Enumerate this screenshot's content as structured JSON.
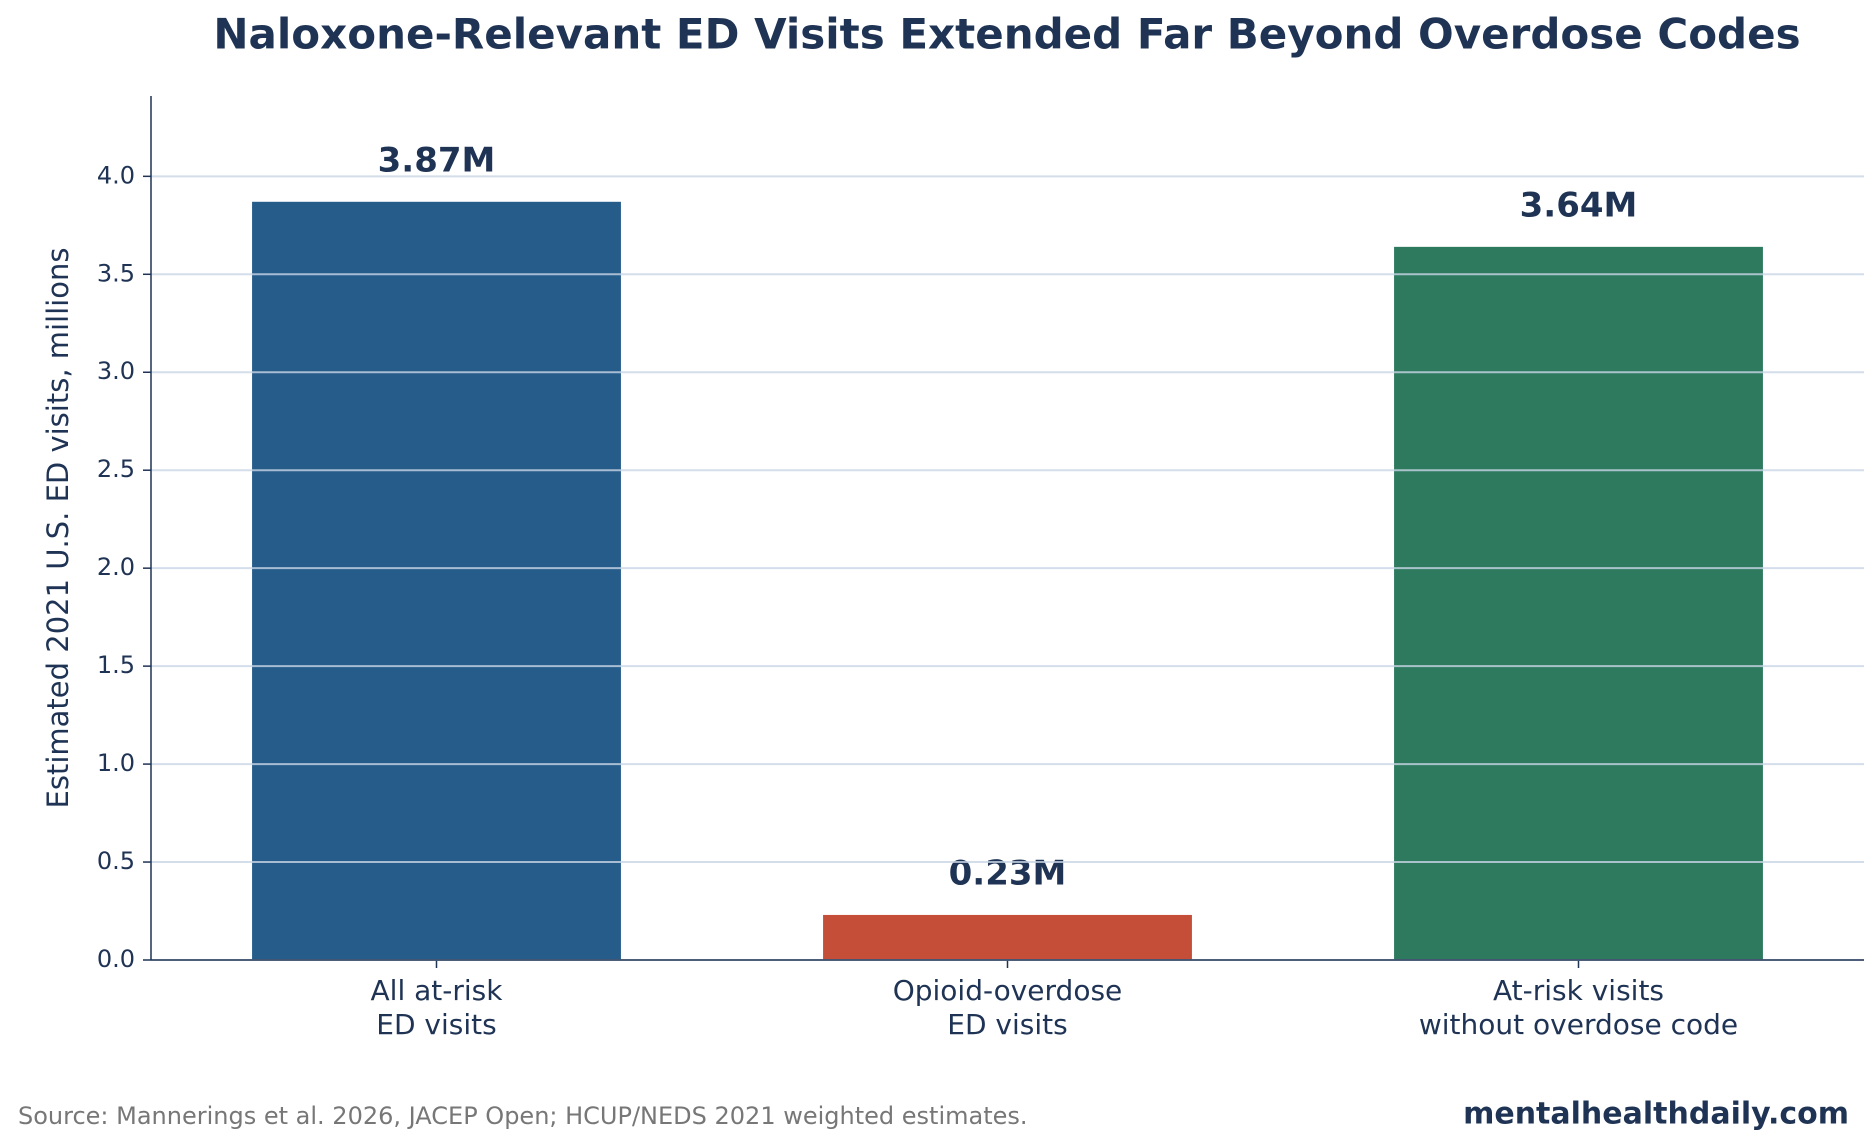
{
  "chart_data": {
    "type": "bar",
    "title": "Naloxone-Relevant ED Visits Extended Far Beyond Overdose Codes",
    "y_label": "Estimated 2021 U.S. ED visits, millions",
    "categories": [
      [
        "All at-risk",
        "ED visits"
      ],
      [
        "Opioid-overdose",
        "ED visits"
      ],
      [
        "At-risk visits",
        "without overdose code"
      ]
    ],
    "values": [
      3.87,
      0.23,
      3.64
    ],
    "value_labels": [
      "3.87M",
      "0.23M",
      "3.64M"
    ],
    "colors": [
      "#255c89",
      "#c44e38",
      "#2d7a5f"
    ],
    "ylim": [
      0,
      4.41
    ],
    "yticks": [
      {
        "value": 0,
        "label": "0.0"
      },
      {
        "value": 0.5,
        "label": "0.5"
      },
      {
        "value": 1,
        "label": "1.0"
      },
      {
        "value": 1.5,
        "label": "1.5"
      },
      {
        "value": 2,
        "label": "2.0"
      },
      {
        "value": 2.5,
        "label": "2.5"
      },
      {
        "value": 3,
        "label": "3.0"
      },
      {
        "value": 3.5,
        "label": "3.5"
      },
      {
        "value": 4,
        "label": "4.0"
      }
    ],
    "grid": true
  },
  "footer": {
    "source": "Source: Mannerings et al. 2026, JACEP Open; HCUP/NEDS 2021 weighted estimates.",
    "brand": "mentalhealthdaily.com"
  }
}
